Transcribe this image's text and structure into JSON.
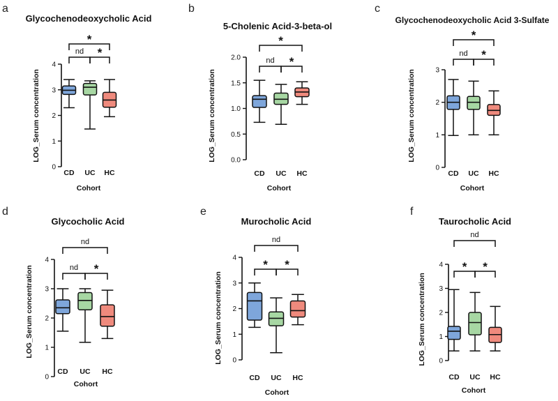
{
  "colors": {
    "CD": "#7ea6db",
    "UC": "#a7d7a3",
    "HC": "#ef8a7d",
    "ink": "#111111"
  },
  "chart_data": [
    {
      "panel": "a",
      "type": "box",
      "title": "Glycochenodeoxycholic Acid",
      "xlabel": "Cohort",
      "ylabel": "LOG_Serum concentration",
      "categories": [
        "CD",
        "UC",
        "HC"
      ],
      "ylim": [
        0,
        4
      ],
      "yticks": [
        "0",
        "1",
        "2",
        "3",
        "4"
      ],
      "boxes": [
        {
          "group": "CD",
          "min": 2.3,
          "q1": 2.82,
          "median": 2.98,
          "q3": 3.15,
          "max": 3.4
        },
        {
          "group": "UC",
          "min": 1.47,
          "q1": 2.8,
          "median": 3.1,
          "q3": 3.25,
          "max": 3.35
        },
        {
          "group": "HC",
          "min": 1.95,
          "q1": 2.32,
          "median": 2.6,
          "q3": 2.9,
          "max": 3.4
        }
      ],
      "comparisons": [
        {
          "from": 0,
          "to": 1,
          "label": "nd",
          "level": 1
        },
        {
          "from": 1,
          "to": 2,
          "label": "*",
          "level": 1
        },
        {
          "from": 0,
          "to": 2,
          "label": "*",
          "level": 2
        }
      ]
    },
    {
      "panel": "b",
      "type": "box",
      "title": "5-Cholenic Acid-3-beta-ol",
      "xlabel": "Cohort",
      "ylabel": "LOG_Serum concentration",
      "categories": [
        "CD",
        "UC",
        "HC"
      ],
      "ylim": [
        0,
        2
      ],
      "yticks": [
        "0.0",
        "0.5",
        "1.0",
        "1.5",
        "2.0"
      ],
      "boxes": [
        {
          "group": "CD",
          "min": 0.73,
          "q1": 1.02,
          "median": 1.18,
          "q3": 1.25,
          "max": 1.55
        },
        {
          "group": "UC",
          "min": 0.69,
          "q1": 1.08,
          "median": 1.18,
          "q3": 1.3,
          "max": 1.47
        },
        {
          "group": "HC",
          "min": 1.08,
          "q1": 1.23,
          "median": 1.32,
          "q3": 1.4,
          "max": 1.52
        }
      ],
      "comparisons": [
        {
          "from": 0,
          "to": 1,
          "label": "nd",
          "level": 1
        },
        {
          "from": 1,
          "to": 2,
          "label": "*",
          "level": 1
        },
        {
          "from": 0,
          "to": 2,
          "label": "*",
          "level": 2
        }
      ]
    },
    {
      "panel": "c",
      "type": "box",
      "title": "Glycochenodeoxycholic Acid 3-Sulfate",
      "xlabel": "Cohort",
      "ylabel": "LOG_Serum concentration",
      "categories": [
        "CD",
        "UC",
        "HC"
      ],
      "ylim": [
        0,
        3
      ],
      "yticks": [
        "0",
        "1",
        "2",
        "3"
      ],
      "boxes": [
        {
          "group": "CD",
          "min": 0.98,
          "q1": 1.78,
          "median": 2.0,
          "q3": 2.2,
          "max": 2.7
        },
        {
          "group": "UC",
          "min": 1.0,
          "q1": 1.78,
          "median": 2.0,
          "q3": 2.18,
          "max": 2.65
        },
        {
          "group": "HC",
          "min": 1.0,
          "q1": 1.6,
          "median": 1.75,
          "q3": 1.93,
          "max": 2.35
        }
      ],
      "comparisons": [
        {
          "from": 0,
          "to": 1,
          "label": "nd",
          "level": 1
        },
        {
          "from": 1,
          "to": 2,
          "label": "*",
          "level": 1
        },
        {
          "from": 0,
          "to": 2,
          "label": "*",
          "level": 2
        }
      ]
    },
    {
      "panel": "d",
      "type": "box",
      "title": "Glycocholic Acid",
      "xlabel": "Cohort",
      "ylabel": "LOG_Serum concentration",
      "categories": [
        "CD",
        "UC",
        "HC"
      ],
      "ylim": [
        0,
        4
      ],
      "yticks": [
        "0",
        "1",
        "2",
        "3",
        "4"
      ],
      "boxes": [
        {
          "group": "CD",
          "min": 1.55,
          "q1": 2.15,
          "median": 2.35,
          "q3": 2.62,
          "max": 3.0
        },
        {
          "group": "UC",
          "min": 1.17,
          "q1": 2.28,
          "median": 2.6,
          "q3": 2.87,
          "max": 3.0
        },
        {
          "group": "HC",
          "min": 1.3,
          "q1": 1.72,
          "median": 2.05,
          "q3": 2.45,
          "max": 2.95
        }
      ],
      "comparisons": [
        {
          "from": 0,
          "to": 1,
          "label": "nd",
          "level": 1
        },
        {
          "from": 1,
          "to": 2,
          "label": "*",
          "level": 1
        },
        {
          "from": 0,
          "to": 2,
          "label": "nd",
          "level": 2
        }
      ]
    },
    {
      "panel": "e",
      "type": "box",
      "title": "Murocholic Acid",
      "xlabel": "Cohort",
      "ylabel": "LOG_Serum concentration",
      "categories": [
        "CD",
        "UC",
        "HC"
      ],
      "ylim": [
        0,
        4
      ],
      "yticks": [
        "0",
        "1",
        "2",
        "3",
        "4"
      ],
      "boxes": [
        {
          "group": "CD",
          "min": 1.27,
          "q1": 1.55,
          "median": 2.3,
          "q3": 2.63,
          "max": 3.0
        },
        {
          "group": "UC",
          "min": 0.28,
          "q1": 1.33,
          "median": 1.62,
          "q3": 1.87,
          "max": 2.42
        },
        {
          "group": "HC",
          "min": 1.37,
          "q1": 1.67,
          "median": 1.92,
          "q3": 2.3,
          "max": 2.55
        }
      ],
      "comparisons": [
        {
          "from": 0,
          "to": 1,
          "label": "*",
          "level": 1
        },
        {
          "from": 1,
          "to": 2,
          "label": "*",
          "level": 1
        },
        {
          "from": 0,
          "to": 2,
          "label": "nd",
          "level": 2
        }
      ]
    },
    {
      "panel": "f",
      "type": "box",
      "title": "Taurocholic Acid",
      "xlabel": "Cohort",
      "ylabel": "LOG_Serum concentration",
      "categories": [
        "CD",
        "UC",
        "HC"
      ],
      "ylim": [
        0,
        4
      ],
      "yticks": [
        "0",
        "1",
        "2",
        "3",
        "4"
      ],
      "boxes": [
        {
          "group": "CD",
          "min": 0.4,
          "q1": 0.88,
          "median": 1.22,
          "q3": 1.42,
          "max": 2.95
        },
        {
          "group": "UC",
          "min": 0.4,
          "q1": 1.07,
          "median": 1.58,
          "q3": 2.0,
          "max": 2.83
        },
        {
          "group": "HC",
          "min": 0.4,
          "q1": 0.75,
          "median": 1.08,
          "q3": 1.38,
          "max": 2.25
        }
      ],
      "comparisons": [
        {
          "from": 0,
          "to": 1,
          "label": "*",
          "level": 1
        },
        {
          "from": 1,
          "to": 2,
          "label": "*",
          "level": 1
        },
        {
          "from": 0,
          "to": 2,
          "label": "nd",
          "level": 2
        }
      ]
    }
  ]
}
